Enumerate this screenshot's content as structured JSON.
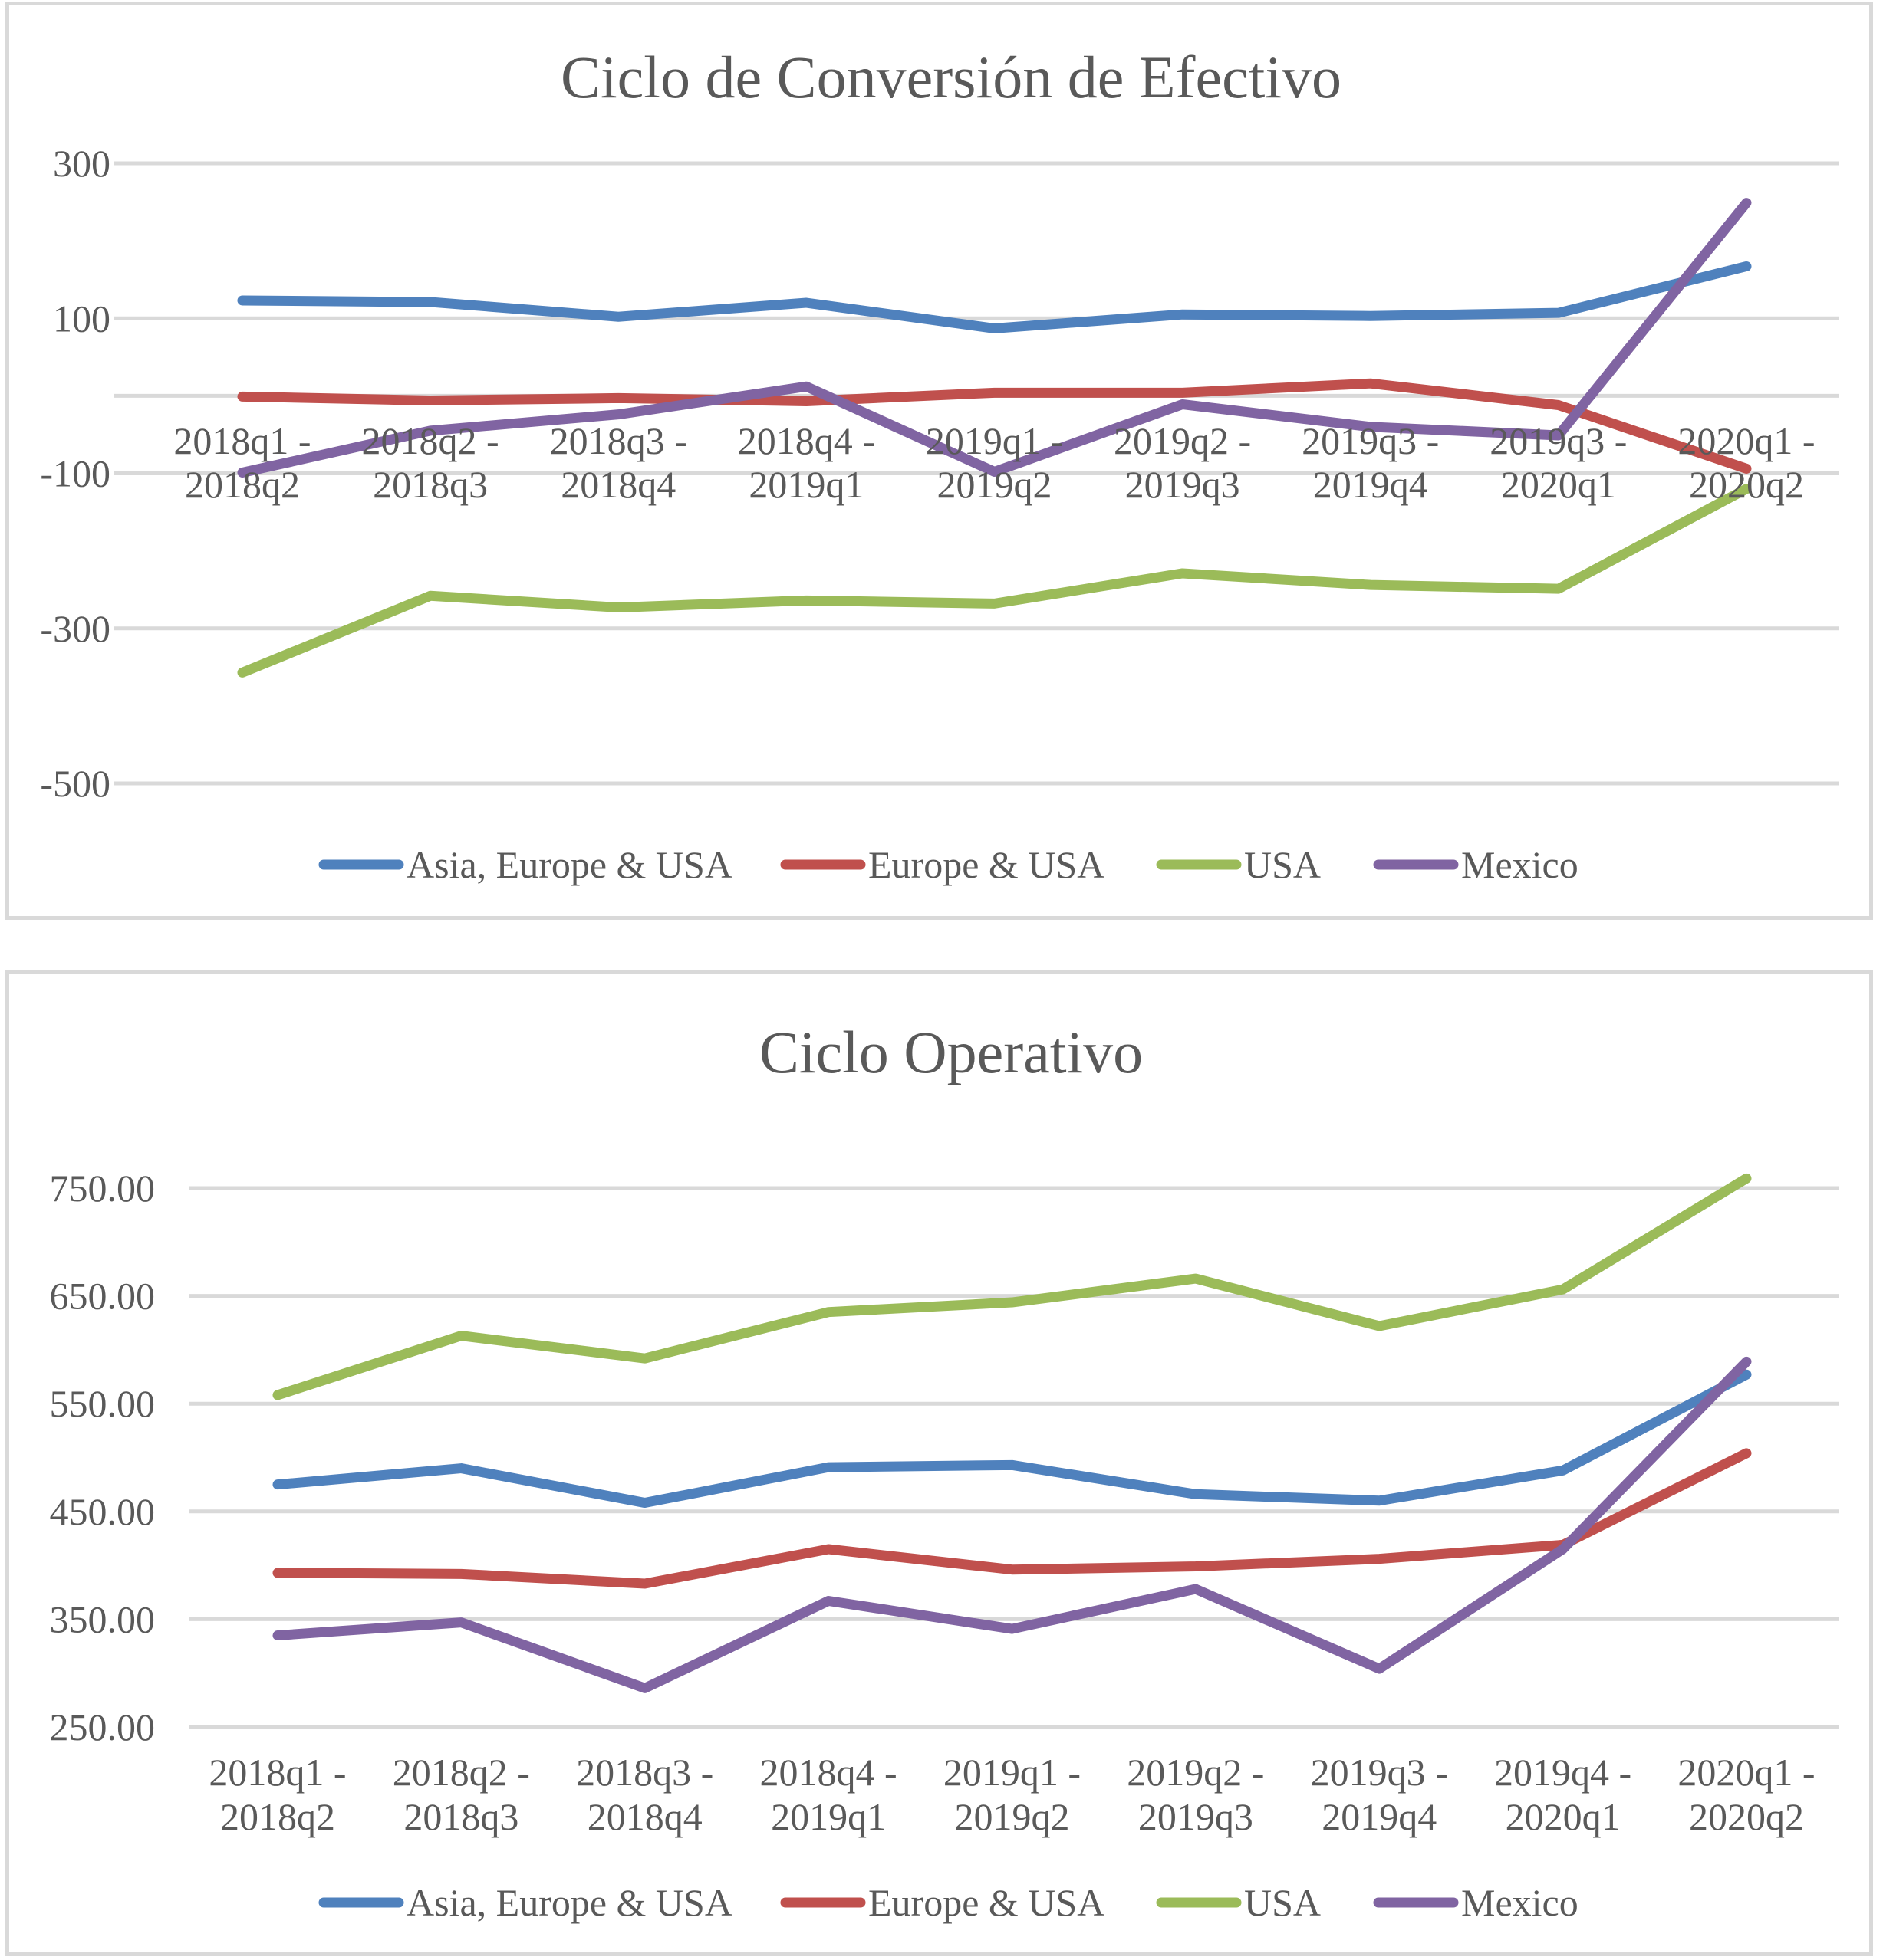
{
  "chart_data": [
    {
      "type": "line",
      "title": "Ciclo de Conversión de Efectivo",
      "xlabel": "",
      "ylabel": "",
      "ylim": [
        -500,
        300
      ],
      "yticks": [
        "300",
        "100",
        "-100",
        "-300",
        "-500"
      ],
      "ytick_values": [
        300,
        100,
        -100,
        -300,
        -500
      ],
      "grid_values": [
        300,
        100,
        0,
        -100,
        -300,
        -500
      ],
      "grid": true,
      "legend": "bottom",
      "categories": [
        [
          "2018q1 -",
          "2018q2"
        ],
        [
          "2018q2 -",
          "2018q3"
        ],
        [
          "2018q3 -",
          "2018q4"
        ],
        [
          "2018q4 -",
          "2019q1"
        ],
        [
          "2019q1 -",
          "2019q2"
        ],
        [
          "2019q2 -",
          "2019q3"
        ],
        [
          "2019q3 -",
          "2019q4"
        ],
        [
          "2019q3 -",
          "2020q1"
        ],
        [
          "2020q1 -",
          "2020q2"
        ]
      ],
      "series": [
        {
          "name": "Asia, Europe & USA",
          "color": "#4f81bd",
          "values": [
            123,
            121,
            102,
            120,
            87,
            105,
            103,
            107,
            167
          ]
        },
        {
          "name": "Europe & USA",
          "color": "#c0504d",
          "values": [
            -1,
            -6,
            -3,
            -7,
            4,
            4,
            16,
            -12,
            -94
          ]
        },
        {
          "name": "USA",
          "color": "#9bbb59",
          "values": [
            -357,
            -258,
            -273,
            -264,
            -268,
            -229,
            -244,
            -249,
            -120
          ]
        },
        {
          "name": "Mexico",
          "color": "#8064a2",
          "values": [
            -99,
            -45,
            -24,
            12,
            -98,
            -11,
            -40,
            -51,
            249
          ]
        }
      ]
    },
    {
      "type": "line",
      "title": "Ciclo Operativo",
      "xlabel": "",
      "ylabel": "",
      "ylim": [
        250,
        750
      ],
      "yticks": [
        "750.00",
        "650.00",
        "550.00",
        "450.00",
        "350.00",
        "250.00"
      ],
      "ytick_values": [
        750,
        650,
        550,
        450,
        350,
        250
      ],
      "grid_values": [
        750,
        650,
        550,
        450,
        350,
        250
      ],
      "grid": true,
      "legend": "bottom",
      "categories": [
        [
          "2018q1 -",
          "2018q2"
        ],
        [
          "2018q2 -",
          "2018q3"
        ],
        [
          "2018q3 -",
          "2018q4"
        ],
        [
          "2018q4 -",
          "2019q1"
        ],
        [
          "2019q1 -",
          "2019q2"
        ],
        [
          "2019q2 -",
          "2019q3"
        ],
        [
          "2019q3 -",
          "2019q4"
        ],
        [
          "2019q4 -",
          "2020q1"
        ],
        [
          "2020q1 -",
          "2020q2"
        ]
      ],
      "series": [
        {
          "name": "Asia, Europe & USA",
          "color": "#4f81bd",
          "values": [
            475,
            490,
            458,
            491,
            493,
            466,
            460,
            488,
            577
          ]
        },
        {
          "name": "Europe & USA",
          "color": "#c0504d",
          "values": [
            393,
            392,
            383,
            415,
            396,
            399,
            406,
            419,
            504
          ]
        },
        {
          "name": "USA",
          "color": "#9bbb59",
          "values": [
            558,
            613,
            592,
            635,
            644,
            666,
            622,
            656,
            759
          ]
        },
        {
          "name": "Mexico",
          "color": "#8064a2",
          "values": [
            335,
            347,
            286,
            367,
            341,
            378,
            304,
            415,
            589
          ]
        }
      ]
    }
  ]
}
